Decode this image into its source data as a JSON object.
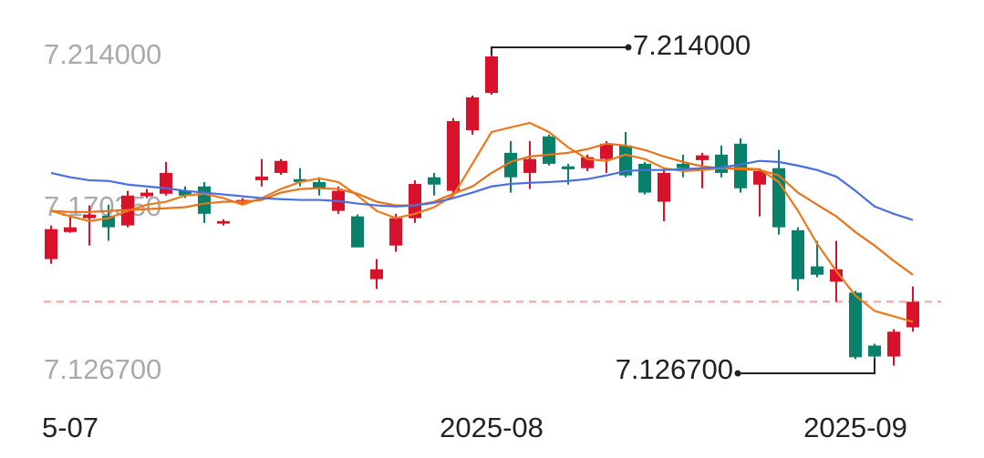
{
  "chart_data": {
    "type": "candlestick",
    "categories": [
      null,
      "5-07",
      null,
      null,
      null,
      null,
      null,
      null,
      null,
      null,
      null,
      null,
      null,
      null,
      null,
      null,
      null,
      null,
      null,
      null,
      null,
      null,
      null,
      "2025-08",
      null,
      null,
      null,
      null,
      null,
      null,
      null,
      null,
      null,
      null,
      null,
      null,
      null,
      null,
      null,
      null,
      null,
      null,
      "2025-09",
      null,
      null,
      null
    ],
    "open": [
      7.158,
      7.1654,
      7.1692,
      7.1699,
      7.1672,
      7.1752,
      7.1759,
      7.1767,
      7.1779,
      7.1677,
      7.1734,
      7.1796,
      7.1816,
      7.1799,
      7.1791,
      7.1712,
      7.1697,
      7.1525,
      7.1617,
      7.1692,
      7.1804,
      7.1767,
      7.1933,
      7.2035,
      7.1871,
      7.1816,
      7.1916,
      7.1834,
      7.1829,
      7.1854,
      7.1891,
      7.1841,
      7.1737,
      7.1841,
      7.1851,
      7.1866,
      7.1896,
      7.1784,
      7.1829,
      7.1659,
      7.156,
      7.1518,
      7.1488,
      7.1343,
      7.1313,
      7.1393
    ],
    "high": [
      7.1672,
      7.1697,
      7.1727,
      7.1729,
      7.1767,
      7.1772,
      7.1846,
      7.1779,
      7.1791,
      7.1689,
      7.1747,
      7.1854,
      7.1854,
      7.1829,
      7.1804,
      7.1779,
      7.1702,
      7.158,
      7.1704,
      7.1796,
      7.1816,
      7.1966,
      7.2028,
      7.214,
      7.1903,
      7.1903,
      7.1921,
      7.1841,
      7.1866,
      7.1903,
      7.1928,
      7.1846,
      7.1829,
      7.1866,
      7.1871,
      7.1891,
      7.1911,
      7.1829,
      7.1879,
      7.1667,
      7.163,
      7.163,
      7.1493,
      7.1348,
      7.1388,
      7.1505
    ],
    "low": [
      7.1567,
      7.1652,
      7.1617,
      7.163,
      7.1667,
      7.1747,
      7.1754,
      7.1747,
      7.1679,
      7.1672,
      7.1729,
      7.1779,
      7.1811,
      7.1779,
      7.1754,
      7.1704,
      7.1612,
      7.1498,
      7.16,
      7.1679,
      7.1754,
      7.1754,
      7.1921,
      7.203,
      7.1762,
      7.1772,
      7.1836,
      7.1784,
      7.1821,
      7.1816,
      7.1804,
      7.1757,
      7.1684,
      7.1804,
      7.1774,
      7.1804,
      7.1762,
      7.1697,
      7.1647,
      7.1493,
      7.153,
      7.1463,
      7.1306,
      7.1267,
      7.1288,
      7.1381
    ],
    "close": [
      7.1662,
      7.1667,
      7.1702,
      7.1667,
      7.1754,
      7.1762,
      7.1816,
      7.1754,
      7.1704,
      7.1684,
      7.1742,
      7.1806,
      7.1849,
      7.1791,
      7.1774,
      7.1767,
      7.1612,
      7.1552,
      7.1692,
      7.1786,
      7.1784,
      7.1958,
      7.2023,
      7.2135,
      7.1804,
      7.1854,
      7.1841,
      7.1826,
      7.1859,
      7.1896,
      7.1809,
      7.1762,
      7.1816,
      7.1829,
      7.1864,
      7.1816,
      7.1774,
      7.1821,
      7.1667,
      7.1525,
      7.1537,
      7.1552,
      7.1311,
      7.1313,
      7.1381,
      7.1463
    ],
    "up_color": "#d9122c",
    "down_color": "#08806a",
    "last_price_color": "#f2a29a",
    "series": [
      {
        "color": "#ee7a1c",
        "values": [
          7.1712,
          7.1697,
          7.1684,
          7.1692,
          7.1712,
          7.1729,
          7.1737,
          7.1754,
          7.1759,
          7.1747,
          7.1729,
          7.1747,
          7.1772,
          7.1791,
          7.1801,
          7.1791,
          7.1754,
          7.1712,
          7.1692,
          7.1704,
          7.1722,
          7.1754,
          7.1841,
          7.1928,
          7.1941,
          7.1953,
          7.1928,
          7.1886,
          7.1854,
          7.1849,
          7.1866,
          7.1854,
          7.1829,
          7.1821,
          7.1824,
          7.1829,
          7.1829,
          7.1826,
          7.1791,
          7.1712,
          7.1622,
          7.1547,
          7.148,
          7.1438,
          7.1423,
          7.1408
        ]
      },
      {
        "color": "#e8721a",
        "values": [
          7.1712,
          7.1709,
          7.1709,
          7.1712,
          7.1714,
          7.1717,
          7.1719,
          7.1722,
          7.1732,
          7.1737,
          7.1737,
          7.1742,
          7.1762,
          7.1772,
          7.1774,
          7.1772,
          7.1759,
          7.1737,
          7.1727,
          7.1727,
          7.1737,
          7.1759,
          7.1779,
          7.1816,
          7.1846,
          7.1861,
          7.1866,
          7.1871,
          7.1881,
          7.1896,
          7.1891,
          7.1879,
          7.1861,
          7.1846,
          7.1834,
          7.1829,
          7.1826,
          7.1824,
          7.1809,
          7.1762,
          7.1729,
          7.1697,
          7.1654,
          7.1617,
          7.1575,
          7.1537
        ]
      },
      {
        "color": "#4a6fe0",
        "values": [
          7.1816,
          7.1804,
          7.1796,
          7.1794,
          7.1784,
          7.1779,
          7.1774,
          7.1767,
          7.1762,
          7.1757,
          7.1752,
          7.1747,
          7.1744,
          7.1742,
          7.1742,
          7.1739,
          7.1732,
          7.1727,
          7.1724,
          7.1727,
          7.1734,
          7.1747,
          7.1762,
          7.1779,
          7.1786,
          7.1789,
          7.1791,
          7.1794,
          7.1799,
          7.1809,
          7.1821,
          7.1824,
          7.1824,
          7.1826,
          7.1829,
          7.1831,
          7.1839,
          7.1849,
          7.1846,
          7.1836,
          7.1824,
          7.1806,
          7.1767,
          7.1724,
          7.1704,
          7.1687
        ]
      }
    ],
    "ylim": [
      7.1267,
      7.214
    ],
    "yticks": [
      {
        "value": 7.214,
        "label": "7.214000"
      },
      {
        "value": 7.17035,
        "label": "7.170350"
      },
      {
        "value": 7.1267,
        "label": "7.126700"
      }
    ],
    "annotations": [
      {
        "kind": "high",
        "value": 7.214,
        "label": "7.214000"
      },
      {
        "kind": "low",
        "value": 7.1267,
        "label": "7.126700"
      }
    ]
  }
}
